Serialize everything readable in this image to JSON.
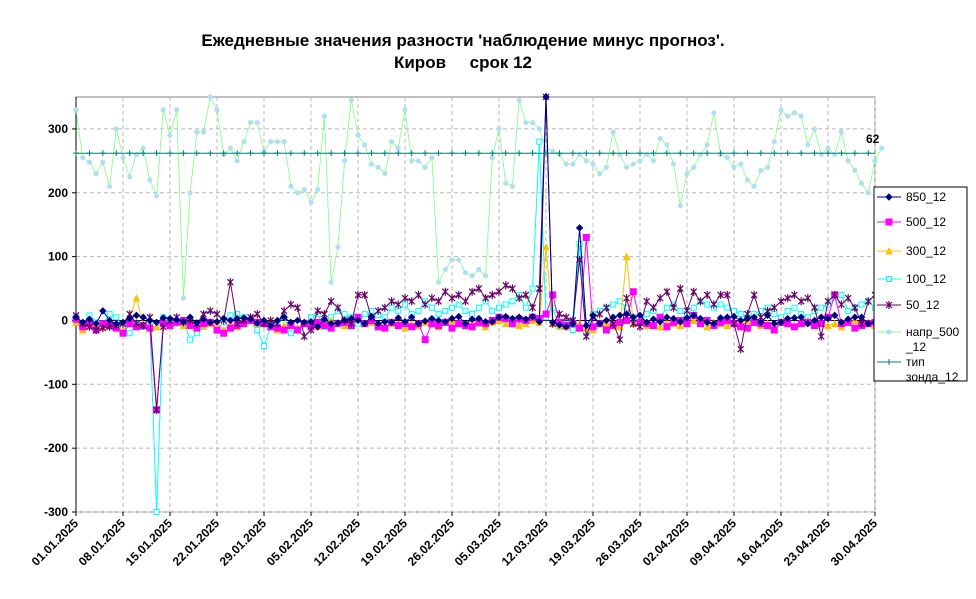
{
  "chart_data": {
    "type": "line",
    "title_line1": "Ежедневные значения разности 'наблюдение минус прогноз'.",
    "title_line2": "Киров     срок 12",
    "ylim": [
      -300,
      350
    ],
    "yticks": [
      -300,
      -200,
      -100,
      0,
      100,
      200,
      300
    ],
    "ytick_labels": [
      "-300",
      "-200",
      "-100",
      "0",
      "100",
      "200",
      "300"
    ],
    "x_start": "01.01.2025",
    "x_days": 119,
    "xtick_labels": [
      "01.01.2025",
      "08.01.2025",
      "15.01.2025",
      "22.01.2025",
      "29.01.2025",
      "05.02.2025",
      "12.02.2025",
      "19.02.2025",
      "26.02.2025",
      "05.03.2025",
      "12.03.2025",
      "19.03.2025",
      "26.03.2025",
      "02.04.2025",
      "09.04.2025",
      "16.04.2025",
      "23.04.2025",
      "30.04.2025"
    ],
    "grid": true,
    "legend_position": "right",
    "annotation": "62",
    "series": [
      {
        "name": "850_12",
        "color": "#000080",
        "marker": "diamond",
        "values": [
          5,
          -3,
          2,
          -5,
          15,
          0,
          -5,
          -3,
          3,
          8,
          5,
          0,
          -3,
          4,
          3,
          1,
          -2,
          5,
          -4,
          2,
          -3,
          -2,
          3,
          0,
          3,
          4,
          2,
          -4,
          0,
          -8,
          0,
          5,
          -3,
          0,
          -3,
          -2,
          -10,
          2,
          -5,
          -4,
          0,
          3,
          0,
          -5,
          6,
          -5,
          -2,
          -3,
          4,
          -2,
          5,
          -5,
          -1,
          3,
          0,
          -2,
          3,
          6,
          -5,
          2,
          3,
          -2,
          -2,
          5,
          6,
          3,
          5,
          2,
          6,
          -2,
          350,
          -3,
          -7,
          -10,
          -5,
          145,
          -8,
          8,
          -5,
          0,
          5,
          8,
          10,
          5,
          8,
          -3,
          2,
          -2,
          5,
          3,
          -2,
          4,
          8,
          3,
          -3,
          -5,
          4,
          5,
          6,
          0,
          3,
          5,
          -3,
          8,
          -5,
          -3,
          3,
          4,
          5,
          -5,
          0,
          5,
          3,
          8,
          -3,
          2,
          5,
          5,
          -5,
          -3,
          10,
          -8,
          3,
          -5,
          2,
          8
        ]
      },
      {
        "name": "500_12",
        "color": "#FF00FF",
        "marker": "square",
        "values": [
          2,
          -10,
          -5,
          -15,
          -5,
          -8,
          -12,
          -20,
          -5,
          -10,
          -8,
          -12,
          -140,
          -5,
          -8,
          -3,
          0,
          -8,
          -12,
          -5,
          -3,
          -15,
          -20,
          -12,
          -8,
          -5,
          0,
          -3,
          -5,
          -10,
          -12,
          -15,
          -8,
          -15,
          -5,
          -10,
          -3,
          -8,
          -12,
          -5,
          -3,
          -8,
          5,
          -5,
          0,
          -10,
          -12,
          -3,
          -8,
          -5,
          -10,
          -5,
          -30,
          -5,
          -8,
          -3,
          -12,
          -5,
          -8,
          -10,
          -3,
          -5,
          0,
          5,
          3,
          -5,
          2,
          0,
          5,
          3,
          10,
          40,
          -3,
          -8,
          -5,
          -12,
          130,
          -10,
          -5,
          -15,
          -8,
          -3,
          0,
          45,
          -3,
          -5,
          -8,
          5,
          -10,
          -3,
          0,
          -5,
          8,
          -5,
          0,
          -8,
          -3,
          0,
          -5,
          -10,
          -12,
          -3,
          -5,
          -8,
          -15,
          -3,
          -5,
          -10,
          -5,
          -3,
          -8,
          -5,
          5,
          40,
          -5,
          -3,
          -12,
          -8,
          -5,
          -3,
          5,
          20,
          -8,
          -3,
          -5
        ]
      },
      {
        "name": "300_12",
        "color": "#FFC000",
        "marker": "triangle",
        "values": [
          -3,
          -15,
          -8,
          -5,
          -10,
          -3,
          -12,
          -15,
          5,
          35,
          -5,
          -8,
          -10,
          -3,
          -5,
          0,
          -8,
          -5,
          -12,
          -8,
          -5,
          -3,
          -15,
          -5,
          -10,
          -3,
          5,
          -5,
          0,
          -10,
          -15,
          -8,
          -5,
          -12,
          -3,
          -5,
          -10,
          -3,
          0,
          -5,
          -8,
          -3,
          5,
          -5,
          -3,
          -8,
          -10,
          -5,
          -3,
          -12,
          -5,
          -8,
          -3,
          -5,
          -10,
          -3,
          0,
          -5,
          -8,
          -3,
          -5,
          -10,
          -3,
          0,
          -5,
          -3,
          -8,
          -5,
          0,
          -3,
          115,
          -5,
          -8,
          -10,
          -3,
          -5,
          -12,
          -15,
          -3,
          -5,
          -8,
          -10,
          100,
          -5,
          -3,
          -8,
          -5,
          -10,
          -3,
          -5,
          -8,
          -3,
          0,
          -5,
          -10,
          -3,
          -5,
          -8,
          -3,
          -5,
          0,
          -3,
          -8,
          -5,
          -10,
          -3,
          -5,
          -8,
          -3,
          0,
          -5,
          -3,
          -8,
          -5,
          -10,
          -3,
          0,
          -5,
          -3,
          -8,
          -5,
          -10,
          -3
        ]
      },
      {
        "name": "100_12",
        "color": "#00FFFF",
        "marker": "square-open",
        "values": [
          5,
          -5,
          8,
          -3,
          -5,
          10,
          5,
          -10,
          -20,
          -5,
          -10,
          -8,
          -300,
          5,
          -5,
          -3,
          0,
          -30,
          -20,
          -10,
          -5,
          -15,
          -3,
          8,
          10,
          5,
          0,
          -15,
          -40,
          -10,
          -5,
          5,
          -20,
          -15,
          -5,
          5,
          10,
          -10,
          5,
          15,
          10,
          5,
          -5,
          10,
          15,
          8,
          5,
          20,
          15,
          25,
          10,
          15,
          30,
          20,
          10,
          15,
          20,
          25,
          15,
          10,
          20,
          30,
          15,
          20,
          25,
          30,
          40,
          20,
          50,
          280,
          5,
          20,
          -10,
          -5,
          -15,
          120,
          -20,
          10,
          15,
          20,
          25,
          30,
          20,
          5,
          -3,
          10,
          15,
          5,
          20,
          25,
          15,
          10,
          20,
          30,
          25,
          20,
          25,
          20,
          15,
          10,
          5,
          10,
          15,
          20,
          10,
          5,
          15,
          20,
          10,
          5,
          15,
          20,
          25,
          35,
          40,
          15,
          20,
          25,
          30,
          20,
          15,
          100,
          5
        ]
      },
      {
        "name": "50_12",
        "color": "#660066",
        "marker": "star",
        "values": [
          8,
          -5,
          -10,
          -15,
          -12,
          -10,
          -8,
          -5,
          10,
          -5,
          -8,
          5,
          -140,
          -10,
          0,
          5,
          -3,
          0,
          -5,
          10,
          15,
          10,
          0,
          60,
          -5,
          0,
          5,
          10,
          -5,
          0,
          -5,
          15,
          25,
          20,
          -25,
          -15,
          15,
          10,
          30,
          20,
          0,
          -5,
          40,
          40,
          5,
          15,
          20,
          30,
          25,
          35,
          30,
          40,
          25,
          35,
          30,
          45,
          35,
          40,
          30,
          45,
          50,
          35,
          40,
          45,
          55,
          50,
          35,
          40,
          20,
          50,
          350,
          -5,
          10,
          5,
          0,
          95,
          -25,
          5,
          10,
          20,
          -5,
          -30,
          35,
          -5,
          -10,
          30,
          20,
          35,
          45,
          20,
          50,
          15,
          45,
          30,
          40,
          25,
          40,
          40,
          -5,
          -45,
          10,
          40,
          5,
          15,
          20,
          30,
          35,
          40,
          30,
          35,
          20,
          -25,
          30,
          40,
          25,
          35,
          20,
          -5,
          30,
          40,
          45
        ]
      },
      {
        "name": "напр_500_12",
        "color": "#B0E0F0",
        "marker": "circle",
        "line_color": "#80FF80",
        "values": [
          330,
          255,
          248,
          230,
          248,
          210,
          300,
          255,
          225,
          260,
          270,
          220,
          195,
          330,
          290,
          330,
          35,
          200,
          295,
          295,
          350,
          330,
          260,
          270,
          250,
          280,
          310,
          310,
          265,
          280,
          280,
          280,
          210,
          200,
          205,
          185,
          205,
          320,
          60,
          115,
          250,
          345,
          290,
          275,
          245,
          240,
          230,
          280,
          270,
          330,
          250,
          250,
          240,
          255,
          60,
          80,
          95,
          95,
          75,
          70,
          80,
          70,
          255,
          300,
          215,
          210,
          345,
          310,
          310,
          300,
          270,
          265,
          260,
          245,
          245,
          260,
          250,
          245,
          230,
          240,
          295,
          260,
          240,
          245,
          250,
          260,
          250,
          285,
          275,
          245,
          180,
          230,
          240,
          260,
          275,
          325,
          260,
          255,
          240,
          245,
          220,
          210,
          235,
          240,
          280,
          330,
          320,
          325,
          320,
          275,
          300,
          260,
          270,
          260,
          295,
          250,
          235,
          215,
          200,
          250,
          270
        ]
      },
      {
        "name": "тип зонда_12",
        "color": "#008080",
        "marker": "plus",
        "values": [
          262,
          262,
          262,
          262,
          262,
          262,
          262,
          262,
          262,
          262,
          262,
          262,
          262,
          262,
          262,
          262,
          262,
          262,
          262,
          262,
          262,
          262,
          262,
          262,
          262,
          262,
          262,
          262,
          262,
          262,
          262,
          262,
          262,
          262,
          262,
          262,
          262,
          262,
          262,
          262,
          262,
          262,
          262,
          262,
          262,
          262,
          262,
          262,
          262,
          262,
          262,
          262,
          262,
          262,
          262,
          262,
          262,
          262,
          262,
          262,
          262,
          262,
          262,
          262,
          262,
          262,
          262,
          262,
          262,
          262,
          262,
          262,
          262,
          262,
          262,
          262,
          262,
          262,
          262,
          262,
          262,
          262,
          262,
          262,
          262,
          262,
          262,
          262,
          262,
          262,
          262,
          262,
          262,
          262,
          262,
          262,
          262,
          262,
          262,
          262,
          262,
          262,
          262,
          262,
          262,
          262,
          262,
          262,
          262,
          262,
          262,
          262,
          262,
          262,
          262,
          262,
          262,
          262,
          262,
          262
        ]
      }
    ],
    "legend": [
      {
        "label_lines": [
          "850_12"
        ]
      },
      {
        "label_lines": [
          "500_12"
        ]
      },
      {
        "label_lines": [
          "300_12"
        ]
      },
      {
        "label_lines": [
          "100_12"
        ]
      },
      {
        "label_lines": [
          "50_12"
        ]
      },
      {
        "label_lines": [
          "напр_500",
          "_12"
        ]
      },
      {
        "label_lines": [
          "тип",
          "зонда_12"
        ]
      }
    ]
  }
}
